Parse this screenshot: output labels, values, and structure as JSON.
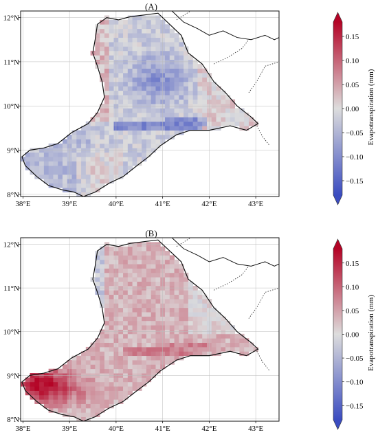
{
  "panels": [
    {
      "id": "A",
      "title": "(A)",
      "colorbar_label": "Evapotranspiration (mm)",
      "pattern": "mostly_negative",
      "x_ticks": [
        "38°E",
        "39°E",
        "40°E",
        "41°E",
        "42°E",
        "43°E"
      ],
      "y_ticks": [
        "12°N",
        "11°N",
        "10°N",
        "9°N",
        "8°N"
      ],
      "colorbar_ticks": [
        "0.15",
        "0.10",
        "0.05",
        "0.00",
        "−0.05",
        "−0.10",
        "−0.15"
      ]
    },
    {
      "id": "B",
      "title": "(B)",
      "colorbar_label": "Evapotranspiration (mm)",
      "pattern": "mostly_positive",
      "x_ticks": [
        "38°E",
        "39°E",
        "40°E",
        "41°E",
        "42°E",
        "43°E"
      ],
      "y_ticks": [
        "12°N",
        "11°N",
        "10°N",
        "9°N",
        "8°N"
      ],
      "colorbar_ticks": [
        "0.15",
        "0.10",
        "0.05",
        "0.00",
        "−0.05",
        "−0.10",
        "−0.15"
      ]
    }
  ],
  "colormap": {
    "name": "coolwarm",
    "min": -0.18,
    "max": 0.18,
    "low_color": "#3b4cc0",
    "mid_color": "#dddddd",
    "high_color": "#b40426"
  },
  "extent": {
    "lon_min": 37.95,
    "lon_max": 43.5,
    "lat_min": 7.95,
    "lat_max": 12.15
  }
}
